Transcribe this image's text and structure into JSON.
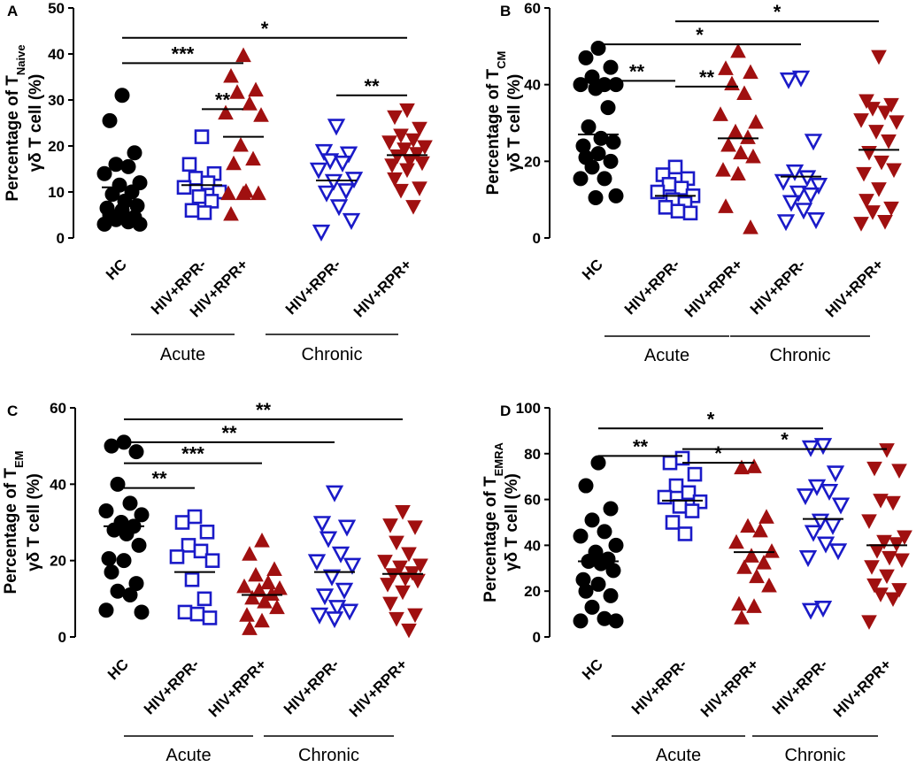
{
  "categories": [
    "HC",
    "HIV+RPR-",
    "HIV+RPR+",
    "HIV+RPR-",
    "HIV+RPR+"
  ],
  "groups": [
    {
      "label": "Acute"
    },
    {
      "label": "Chronic"
    }
  ],
  "styles": [
    {
      "shape": "circle",
      "color": "#000000",
      "filled": true
    },
    {
      "shape": "square",
      "color": "#1a1ac8",
      "filled": false
    },
    {
      "shape": "triangle-up",
      "color": "#a01010",
      "filled": true
    },
    {
      "shape": "triangle-down",
      "color": "#1a1ac8",
      "filled": false
    },
    {
      "shape": "triangle-down",
      "color": "#a01010",
      "filled": true
    }
  ],
  "chart_data": [
    {
      "type": "scatter",
      "panel": "A",
      "ylabel_line1": "Percentage of T",
      "ylabel_sub": "Naive",
      "ylabel_line2": "γδ T cell (%)",
      "ylim": [
        0,
        50
      ],
      "yticks": [
        0,
        10,
        20,
        30,
        40,
        50
      ],
      "categories": [
        "HC",
        "HIV+RPR-",
        "HIV+RPR+",
        "HIV+RPR-",
        "HIV+RPR+"
      ],
      "means": [
        11,
        11.5,
        22,
        12.5,
        18
      ],
      "series": [
        {
          "name": "HC",
          "values": [
            31,
            25.5,
            18.5,
            16,
            15.5,
            14,
            12,
            11.5,
            10,
            9.5,
            8,
            7,
            6.5,
            6,
            5,
            4.5,
            4,
            3.5,
            3,
            3
          ]
        },
        {
          "name": "Acute HIV+RPR-",
          "values": [
            22,
            16,
            14,
            13,
            12,
            11,
            10,
            9,
            8,
            6,
            5.5
          ]
        },
        {
          "name": "Acute HIV+RPR+",
          "values": [
            39.5,
            35,
            32,
            31.5,
            29,
            27,
            26.5,
            20,
            17,
            16,
            10,
            9.5,
            9.5,
            9.5,
            5
          ]
        },
        {
          "name": "Chronic HIV+RPR-",
          "values": [
            24.5,
            19,
            18.5,
            17,
            16.5,
            15,
            13,
            12.5,
            10.5,
            10,
            7,
            4,
            1.5
          ]
        },
        {
          "name": "Chronic HIV+RPR+",
          "values": [
            28,
            26.5,
            24,
            22.5,
            21.5,
            21,
            20,
            19.5,
            18.5,
            18,
            17,
            16.5,
            16,
            15,
            13,
            11,
            10.5,
            7
          ]
        }
      ],
      "significance": [
        {
          "from": 0,
          "to": 2,
          "y": 38,
          "label": "***"
        },
        {
          "from": 1,
          "to": 2,
          "y": 28,
          "label": "**"
        },
        {
          "from": 3,
          "to": 4,
          "y": 31,
          "label": "**"
        },
        {
          "from": 0,
          "to": 4,
          "y": 43.5,
          "label": "*"
        }
      ]
    },
    {
      "type": "scatter",
      "panel": "B",
      "ylabel_line1": "Percentage of T",
      "ylabel_sub": "CM",
      "ylabel_line2": "γδ T cell (%)",
      "ylim": [
        0,
        60
      ],
      "yticks": [
        0,
        20,
        40,
        60
      ],
      "categories": [
        "HC",
        "HIV+RPR-",
        "HIV+RPR+",
        "HIV+RPR-",
        "HIV+RPR+"
      ],
      "means": [
        27,
        11,
        26,
        16,
        23
      ],
      "series": [
        {
          "name": "HC",
          "values": [
            49.5,
            47,
            44.5,
            42,
            40,
            40,
            40,
            39,
            34,
            29,
            26,
            25,
            24,
            22,
            21,
            20,
            18.5,
            15.5,
            15.5,
            11,
            10.5
          ]
        },
        {
          "name": "Acute HIV+RPR-",
          "values": [
            18.5,
            16.5,
            15.5,
            14,
            13,
            12,
            11,
            10,
            9,
            8,
            7,
            6.5
          ]
        },
        {
          "name": "Acute HIV+RPR+",
          "values": [
            48.5,
            44,
            43,
            40,
            37.5,
            32,
            30,
            27.5,
            26,
            24,
            22,
            21,
            17.5,
            16.5,
            8,
            2.5
          ]
        },
        {
          "name": "Chronic HIV+RPR-",
          "values": [
            42,
            41.5,
            25.5,
            17.5,
            16,
            15,
            14,
            12,
            11.5,
            9.5,
            7.5,
            5,
            4.5
          ]
        },
        {
          "name": "Chronic HIV+RPR+",
          "values": [
            47.5,
            36,
            35,
            34,
            33,
            31,
            30.5,
            28,
            25.5,
            22.5,
            20,
            18,
            17,
            13,
            10,
            8,
            7,
            4.5,
            4
          ]
        }
      ],
      "significance": [
        {
          "from": 0,
          "to": 1,
          "y": 41,
          "label": "**"
        },
        {
          "from": 1,
          "to": 2,
          "y": 39.5,
          "label": "**"
        },
        {
          "from": 0,
          "to": 3,
          "y": 50.5,
          "label": "*"
        },
        {
          "from": 1,
          "to": 4,
          "y": 56.5,
          "label": "*"
        }
      ]
    },
    {
      "type": "scatter",
      "panel": "C",
      "ylabel_line1": "Percentage of T",
      "ylabel_sub": "EM",
      "ylabel_line2": "γδ T cell (%)",
      "ylim": [
        0,
        60
      ],
      "yticks": [
        0,
        20,
        40,
        60
      ],
      "categories": [
        "HC",
        "HIV+RPR-",
        "HIV+RPR+",
        "HIV+RPR-",
        "HIV+RPR+"
      ],
      "means": [
        29,
        17,
        11,
        17,
        16.5
      ],
      "series": [
        {
          "name": "HC",
          "values": [
            51,
            50,
            48.5,
            40,
            35,
            33,
            32,
            30,
            29,
            28,
            27,
            24,
            20.5,
            20,
            17,
            14,
            12,
            11,
            7,
            6.5
          ]
        },
        {
          "name": "Acute HIV+RPR-",
          "values": [
            31.5,
            30,
            27.5,
            24,
            22.5,
            21,
            20,
            15,
            10,
            6.5,
            6,
            5
          ]
        },
        {
          "name": "Acute HIV+RPR+",
          "values": [
            25,
            21.5,
            17.5,
            16,
            14,
            13,
            12.5,
            12,
            11,
            10,
            9,
            7.5,
            5.5,
            4,
            2
          ]
        },
        {
          "name": "Chronic HIV+RPR-",
          "values": [
            38,
            30,
            29,
            26,
            22,
            20,
            19,
            16,
            12.5,
            11,
            8,
            7,
            6,
            5
          ]
        },
        {
          "name": "Chronic HIV+RPR+",
          "values": [
            33,
            29.5,
            29,
            25,
            22,
            20,
            19,
            18.5,
            17,
            16.5,
            15.5,
            15,
            14,
            12,
            9,
            6,
            5,
            2
          ]
        }
      ],
      "significance": [
        {
          "from": 0,
          "to": 1,
          "y": 39,
          "label": "**"
        },
        {
          "from": 0,
          "to": 2,
          "y": 45.5,
          "label": "***"
        },
        {
          "from": 0,
          "to": 3,
          "y": 51,
          "label": "**"
        },
        {
          "from": 0,
          "to": 4,
          "y": 57,
          "label": "**"
        }
      ]
    },
    {
      "type": "scatter",
      "panel": "D",
      "ylabel_line1": "Percentage of T",
      "ylabel_sub": "EMRA",
      "ylabel_line2": "γδ T cell (%)",
      "ylim": [
        0,
        100
      ],
      "yticks": [
        0,
        20,
        40,
        60,
        80,
        100
      ],
      "categories": [
        "HC",
        "HIV+RPR-",
        "HIV+RPR+",
        "HIV+RPR-",
        "HIV+RPR+"
      ],
      "means": [
        33,
        59.5,
        37,
        51.5,
        40
      ],
      "series": [
        {
          "name": "HC",
          "values": [
            76,
            66,
            56,
            51,
            46,
            44,
            40,
            37,
            34,
            33,
            32,
            29,
            25,
            23,
            20,
            18,
            13,
            8,
            7,
            7
          ]
        },
        {
          "name": "Acute HIV+RPR-",
          "values": [
            78,
            76,
            71,
            66,
            63,
            61,
            59,
            57,
            55,
            50,
            45
          ]
        },
        {
          "name": "Acute HIV+RPR+",
          "values": [
            74,
            73.5,
            52,
            48,
            46,
            41,
            37,
            35,
            32,
            30,
            26,
            22,
            14,
            13,
            8
          ]
        },
        {
          "name": "Chronic HIV+RPR-",
          "values": [
            84,
            83,
            72,
            66,
            64,
            62,
            58,
            51,
            49,
            46,
            41,
            38,
            35,
            13,
            12
          ]
        },
        {
          "name": "Chronic HIV+RPR+",
          "values": [
            82,
            74,
            73,
            60,
            59,
            51,
            44,
            42,
            41,
            38,
            35,
            34,
            31,
            27,
            23,
            21,
            19,
            17,
            7
          ]
        }
      ],
      "significance": [
        {
          "from": 0,
          "to": 1,
          "y": 79,
          "label": "**"
        },
        {
          "from": 1,
          "to": 2,
          "y": 76,
          "label": "*"
        },
        {
          "from": 0,
          "to": 3,
          "y": 91,
          "label": "*"
        },
        {
          "from": 1,
          "to": 4,
          "y": 82,
          "label": "*"
        }
      ]
    }
  ]
}
